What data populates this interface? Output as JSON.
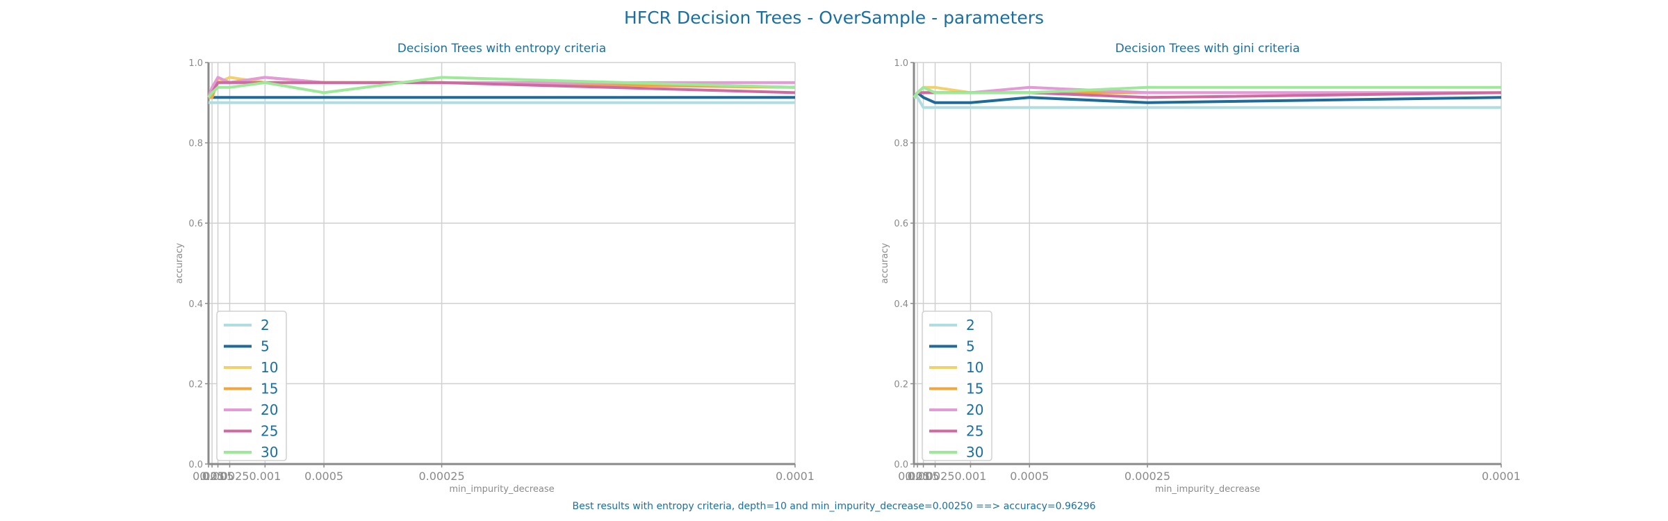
{
  "suptitle": "HFCR Decision Trees - OverSample - parameters",
  "footnote": "Best results with entropy criteria, depth=10 and min_impurity_decrease=0.00250 ==> accuracy=0.96296",
  "chart_data": [
    {
      "type": "line",
      "title": "Decision Trees with entropy criteria",
      "xlabel": "min_impurity_decrease",
      "ylabel": "accuracy",
      "x": [
        0.025,
        0.01,
        0.005,
        0.0025,
        0.001,
        0.0005,
        0.00025,
        0.0001
      ],
      "xticklabels": [
        "0.025",
        "0.01",
        "0.005",
        "0.0025",
        "0.001",
        "0.0005",
        "0.00025",
        "0.0001"
      ],
      "xscale": "reciprocal",
      "ylim": [
        0.0,
        1.0
      ],
      "yticks": [
        0.0,
        0.2,
        0.4,
        0.6,
        0.8,
        1.0
      ],
      "grid": true,
      "legend_position": "lower-left",
      "series": [
        {
          "name": "2",
          "color": "#b0dde0",
          "values": [
            0.9,
            0.9,
            0.9,
            0.9,
            0.9,
            0.9,
            0.9,
            0.9
          ]
        },
        {
          "name": "5",
          "color": "#1f6a99",
          "values": [
            0.913,
            0.913,
            0.913,
            0.913,
            0.913,
            0.913,
            0.913,
            0.913
          ]
        },
        {
          "name": "10",
          "color": "#f2d06b",
          "values": [
            0.913,
            0.913,
            0.95,
            0.963,
            0.95,
            0.95,
            0.95,
            0.938
          ]
        },
        {
          "name": "15",
          "color": "#f0a640",
          "values": [
            0.913,
            0.913,
            0.963,
            0.95,
            0.963,
            0.95,
            0.95,
            0.938
          ]
        },
        {
          "name": "20",
          "color": "#e39ad6",
          "values": [
            0.913,
            0.938,
            0.963,
            0.95,
            0.963,
            0.95,
            0.95,
            0.95
          ]
        },
        {
          "name": "25",
          "color": "#cf6aa0",
          "values": [
            0.913,
            0.925,
            0.95,
            0.95,
            0.95,
            0.95,
            0.95,
            0.925
          ]
        },
        {
          "name": "30",
          "color": "#9ee89a",
          "values": [
            0.913,
            0.925,
            0.938,
            0.938,
            0.95,
            0.925,
            0.963,
            0.938
          ]
        }
      ]
    },
    {
      "type": "line",
      "title": "Decision Trees with gini criteria",
      "xlabel": "min_impurity_decrease",
      "ylabel": "accuracy",
      "x": [
        0.025,
        0.01,
        0.005,
        0.0025,
        0.001,
        0.0005,
        0.00025,
        0.0001
      ],
      "xticklabels": [
        "0.025",
        "0.01",
        "0.005",
        "0.0025",
        "0.001",
        "0.0005",
        "0.00025",
        "0.0001"
      ],
      "xscale": "reciprocal",
      "ylim": [
        0.0,
        1.0
      ],
      "yticks": [
        0.0,
        0.2,
        0.4,
        0.6,
        0.8,
        1.0
      ],
      "grid": true,
      "legend_position": "lower-left",
      "series": [
        {
          "name": "2",
          "color": "#b0dde0",
          "values": [
            0.913,
            0.913,
            0.888,
            0.888,
            0.888,
            0.888,
            0.888,
            0.888
          ]
        },
        {
          "name": "5",
          "color": "#1f6a99",
          "values": [
            0.913,
            0.925,
            0.913,
            0.9,
            0.9,
            0.913,
            0.9,
            0.913
          ]
        },
        {
          "name": "10",
          "color": "#f2d06b",
          "values": [
            0.913,
            0.925,
            0.938,
            0.938,
            0.925,
            0.925,
            0.925,
            0.925
          ]
        },
        {
          "name": "15",
          "color": "#f0a640",
          "values": [
            0.913,
            0.925,
            0.925,
            0.925,
            0.925,
            0.925,
            0.925,
            0.925
          ]
        },
        {
          "name": "20",
          "color": "#e39ad6",
          "values": [
            0.913,
            0.925,
            0.925,
            0.925,
            0.925,
            0.938,
            0.925,
            0.925
          ]
        },
        {
          "name": "25",
          "color": "#cf6aa0",
          "values": [
            0.913,
            0.925,
            0.925,
            0.925,
            0.925,
            0.925,
            0.913,
            0.925
          ]
        },
        {
          "name": "30",
          "color": "#9ee89a",
          "values": [
            0.913,
            0.925,
            0.938,
            0.925,
            0.925,
            0.925,
            0.938,
            0.938
          ]
        }
      ]
    }
  ]
}
